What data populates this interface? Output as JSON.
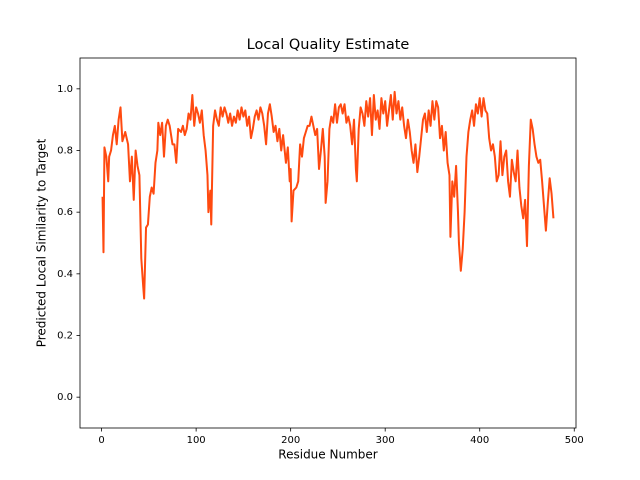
{
  "chart_data": {
    "type": "line",
    "title": "Local Quality Estimate",
    "x_label": "Residue Number",
    "y_label": "Predicted Local Similarity to Target",
    "x": [
      1,
      2,
      3,
      5,
      7,
      8,
      10,
      12,
      14,
      16,
      18,
      20,
      22,
      25,
      28,
      30,
      32,
      34,
      36,
      38,
      40,
      42,
      44,
      45,
      47,
      49,
      51,
      53,
      55,
      57,
      59,
      60,
      62,
      64,
      66,
      68,
      70,
      72,
      75,
      77,
      79,
      81,
      84,
      86,
      88,
      90,
      92,
      94,
      96,
      98,
      100,
      102,
      104,
      106,
      108,
      110,
      112,
      113,
      115,
      116,
      118,
      120,
      122,
      124,
      126,
      128,
      130,
      132,
      134,
      136,
      138,
      140,
      142,
      144,
      146,
      148,
      150,
      152,
      154,
      156,
      158,
      160,
      162,
      164,
      166,
      168,
      170,
      172,
      174,
      176,
      178,
      180,
      182,
      184,
      186,
      188,
      190,
      192,
      195,
      197,
      199,
      200,
      201,
      203,
      206,
      208,
      210,
      212,
      214,
      216,
      218,
      220,
      222,
      224,
      226,
      228,
      230,
      232,
      234,
      236,
      237,
      239,
      241,
      243,
      245,
      247,
      249,
      251,
      253,
      255,
      257,
      259,
      261,
      263,
      265,
      267,
      269,
      270,
      272,
      274,
      276,
      278,
      280,
      282,
      284,
      286,
      288,
      290,
      292,
      294,
      296,
      298,
      300,
      302,
      304,
      306,
      308,
      310,
      312,
      314,
      316,
      318,
      320,
      322,
      324,
      326,
      328,
      330,
      332,
      334,
      336,
      338,
      340,
      342,
      344,
      346,
      348,
      350,
      352,
      354,
      356,
      358,
      360,
      362,
      364,
      366,
      368,
      369,
      371,
      373,
      375,
      377,
      378,
      380,
      382,
      384,
      386,
      388,
      390,
      392,
      394,
      396,
      398,
      400,
      402,
      404,
      406,
      408,
      410,
      412,
      414,
      416,
      418,
      420,
      422,
      424,
      426,
      428,
      430,
      432,
      434,
      436,
      438,
      440,
      442,
      444,
      446,
      448,
      450,
      452,
      454,
      456,
      458,
      460,
      462,
      464,
      466,
      468,
      470,
      472,
      474,
      476,
      478
    ],
    "series": [
      {
        "name": "Local Quality Estimate",
        "color": "#ff4a10",
        "values": [
          0.65,
          0.47,
          0.81,
          0.78,
          0.7,
          0.78,
          0.8,
          0.85,
          0.88,
          0.82,
          0.9,
          0.94,
          0.83,
          0.86,
          0.82,
          0.7,
          0.78,
          0.64,
          0.8,
          0.75,
          0.72,
          0.45,
          0.36,
          0.32,
          0.55,
          0.56,
          0.65,
          0.68,
          0.66,
          0.76,
          0.8,
          0.89,
          0.85,
          0.89,
          0.78,
          0.88,
          0.9,
          0.88,
          0.82,
          0.82,
          0.76,
          0.87,
          0.86,
          0.88,
          0.85,
          0.87,
          0.92,
          0.9,
          0.98,
          0.88,
          0.94,
          0.92,
          0.89,
          0.93,
          0.85,
          0.8,
          0.72,
          0.6,
          0.67,
          0.56,
          0.88,
          0.93,
          0.9,
          0.88,
          0.94,
          0.91,
          0.94,
          0.92,
          0.89,
          0.92,
          0.88,
          0.91,
          0.89,
          0.93,
          0.9,
          0.94,
          0.91,
          0.93,
          0.88,
          0.91,
          0.84,
          0.87,
          0.91,
          0.93,
          0.9,
          0.94,
          0.92,
          0.88,
          0.82,
          0.92,
          0.95,
          0.91,
          0.86,
          0.88,
          0.83,
          0.87,
          0.8,
          0.85,
          0.76,
          0.81,
          0.7,
          0.74,
          0.57,
          0.67,
          0.68,
          0.7,
          0.82,
          0.78,
          0.84,
          0.86,
          0.88,
          0.88,
          0.91,
          0.88,
          0.85,
          0.87,
          0.74,
          0.8,
          0.87,
          0.78,
          0.63,
          0.7,
          0.87,
          0.91,
          0.89,
          0.95,
          0.89,
          0.94,
          0.95,
          0.92,
          0.95,
          0.89,
          0.91,
          0.88,
          0.82,
          0.9,
          0.74,
          0.7,
          0.87,
          0.94,
          0.92,
          0.88,
          0.96,
          0.91,
          0.97,
          0.85,
          0.98,
          0.9,
          0.93,
          0.87,
          0.97,
          0.92,
          0.96,
          0.88,
          0.93,
          0.98,
          0.9,
          0.99,
          0.92,
          0.96,
          0.9,
          0.94,
          0.88,
          0.84,
          0.9,
          0.86,
          0.8,
          0.76,
          0.82,
          0.73,
          0.78,
          0.84,
          0.9,
          0.92,
          0.86,
          0.93,
          0.88,
          0.96,
          0.9,
          0.96,
          0.94,
          0.84,
          0.88,
          0.8,
          0.86,
          0.76,
          0.72,
          0.52,
          0.7,
          0.65,
          0.75,
          0.6,
          0.5,
          0.41,
          0.48,
          0.6,
          0.78,
          0.86,
          0.9,
          0.93,
          0.88,
          0.95,
          0.92,
          0.97,
          0.91,
          0.97,
          0.93,
          0.92,
          0.84,
          0.8,
          0.82,
          0.78,
          0.7,
          0.72,
          0.83,
          0.72,
          0.78,
          0.8,
          0.7,
          0.65,
          0.77,
          0.73,
          0.7,
          0.8,
          0.68,
          0.62,
          0.58,
          0.64,
          0.49,
          0.75,
          0.9,
          0.87,
          0.82,
          0.78,
          0.76,
          0.77,
          0.7,
          0.62,
          0.54,
          0.63,
          0.71,
          0.66,
          0.58
        ]
      }
    ],
    "xlim": [
      -22.85,
      501.85
    ],
    "xticks": [
      0,
      100,
      200,
      300,
      400,
      500
    ],
    "ylim": [
      -0.1,
      1.1
    ],
    "yticks": [
      {
        "value": 0,
        "label": "0.0"
      },
      0.2,
      0.4,
      0.6,
      0.8,
      {
        "value": 1,
        "label": "1.0"
      }
    ]
  }
}
